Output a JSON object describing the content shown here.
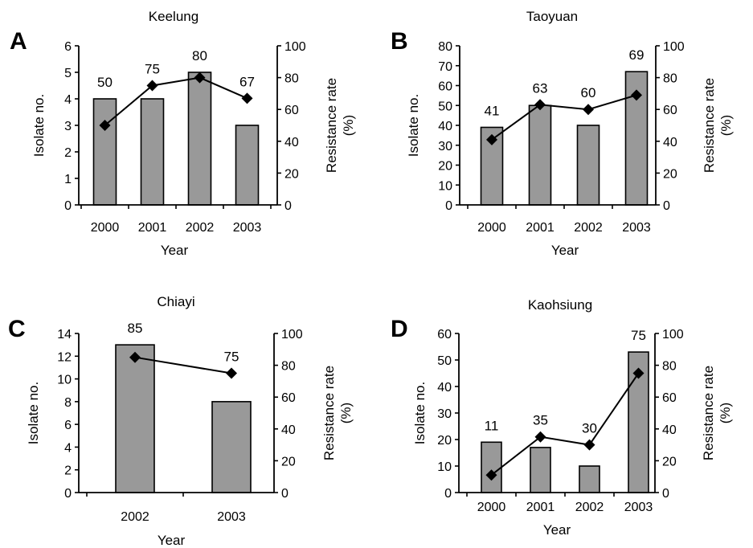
{
  "chart_data": [
    {
      "id": "A",
      "letter": "A",
      "type": "bar+line",
      "title": "Keelung",
      "xlabel": "Year",
      "ylabel": "Isolate no.",
      "y2label_line1": "Resistance rate",
      "y2label_line2": "(%)",
      "categories": [
        "2000",
        "2001",
        "2002",
        "2003"
      ],
      "bar_values": [
        4,
        4,
        5,
        3
      ],
      "line_values": [
        50,
        75,
        80,
        67
      ],
      "ylim": [
        0,
        6
      ],
      "yticks": [
        "0",
        "1",
        "2",
        "3",
        "4",
        "5",
        "6"
      ],
      "y2lim": [
        0,
        100
      ],
      "y2ticks": [
        "0",
        "20",
        "40",
        "60",
        "80",
        "100"
      ],
      "data_labels": [
        "50",
        "75",
        "80",
        "67"
      ]
    },
    {
      "id": "B",
      "letter": "B",
      "type": "bar+line",
      "title": "Taoyuan",
      "xlabel": "Year",
      "ylabel": "Isolate no.",
      "y2label_line1": "Resistance rate",
      "y2label_line2": "(%)",
      "categories": [
        "2000",
        "2001",
        "2002",
        "2003"
      ],
      "bar_values": [
        39,
        50,
        40,
        67
      ],
      "line_values": [
        41,
        63,
        60,
        69
      ],
      "ylim": [
        0,
        80
      ],
      "yticks": [
        "0",
        "10",
        "20",
        "30",
        "40",
        "50",
        "60",
        "70",
        "80"
      ],
      "y2lim": [
        0,
        100
      ],
      "y2ticks": [
        "0",
        "20",
        "40",
        "60",
        "80",
        "100"
      ],
      "data_labels": [
        "41",
        "63",
        "60",
        "69"
      ]
    },
    {
      "id": "C",
      "letter": "C",
      "type": "bar+line",
      "title": "Chiayi",
      "xlabel": "Year",
      "ylabel": "Isolate no.",
      "y2label_line1": "Resistance rate",
      "y2label_line2": "(%)",
      "categories": [
        "2002",
        "2003"
      ],
      "bar_values": [
        13,
        8
      ],
      "line_values": [
        85,
        75
      ],
      "ylim": [
        0,
        14
      ],
      "yticks": [
        "0",
        "2",
        "4",
        "6",
        "8",
        "10",
        "12",
        "14"
      ],
      "y2lim": [
        0,
        100
      ],
      "y2ticks": [
        "0",
        "20",
        "40",
        "60",
        "80",
        "100"
      ],
      "data_labels": [
        "85",
        "75"
      ]
    },
    {
      "id": "D",
      "letter": "D",
      "type": "bar+line",
      "title": "Kaohsiung",
      "xlabel": "Year",
      "ylabel": "Isolate no.",
      "y2label_line1": "Resistance rate",
      "y2label_line2": "(%)",
      "categories": [
        "2000",
        "2001",
        "2002",
        "2003"
      ],
      "bar_values": [
        19,
        17,
        10,
        53
      ],
      "line_values": [
        11,
        35,
        30,
        75
      ],
      "ylim": [
        0,
        60
      ],
      "yticks": [
        "0",
        "10",
        "20",
        "30",
        "40",
        "50",
        "60"
      ],
      "y2lim": [
        0,
        100
      ],
      "y2ticks": [
        "0",
        "20",
        "40",
        "60",
        "80",
        "100"
      ],
      "data_labels": [
        "11",
        "35",
        "30",
        "75"
      ]
    }
  ]
}
